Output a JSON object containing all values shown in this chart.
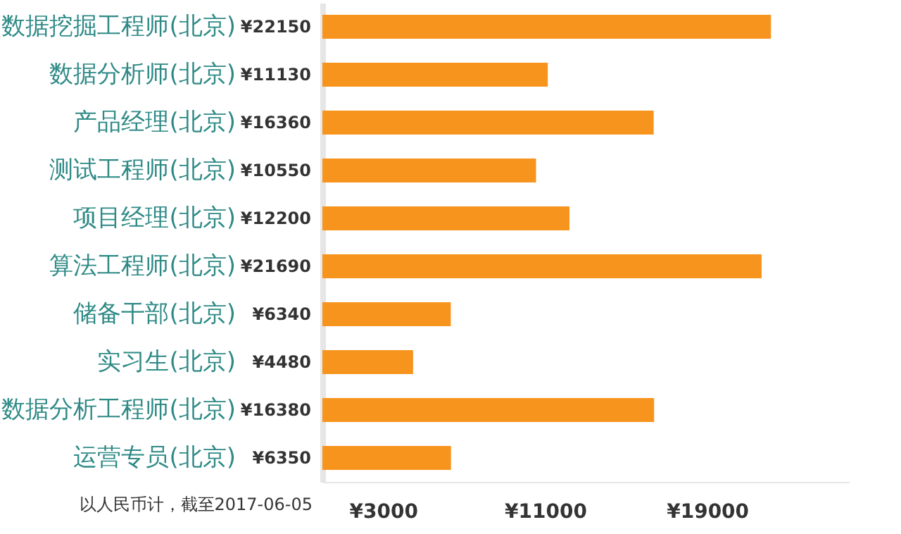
{
  "chart_data": {
    "type": "bar",
    "orientation": "horizontal",
    "categories": [
      "数据挖掘工程师(北京)",
      "数据分析师(北京)",
      "产品经理(北京)",
      "测试工程师(北京)",
      "项目经理(北京)",
      "算法工程师(北京)",
      "储备干部(北京)",
      "实习生(北京)",
      "数据分析工程师(北京)",
      "运营专员(北京)"
    ],
    "values": [
      22150,
      11130,
      16360,
      10550,
      12200,
      21690,
      6340,
      4480,
      16380,
      6350
    ],
    "value_labels": [
      "¥22150",
      "¥11130",
      "¥16360",
      "¥10550",
      "¥12200",
      "¥21690",
      "¥6340",
      "¥4480",
      "¥16380",
      "¥6350"
    ],
    "color": "#f7941d",
    "xlim": [
      0,
      26000
    ],
    "xticks": [
      {
        "value": 3000,
        "label": "¥3000"
      },
      {
        "value": 11000,
        "label": "¥11000"
      },
      {
        "value": 19000,
        "label": "¥19000"
      }
    ],
    "grid": false,
    "annotations": [
      "以人民币计，截至2017-06-05"
    ]
  }
}
